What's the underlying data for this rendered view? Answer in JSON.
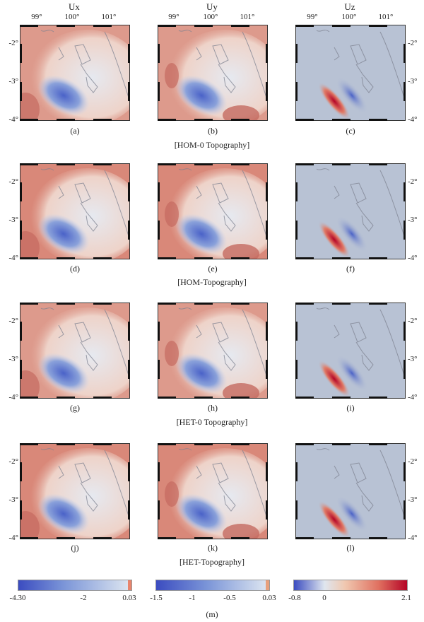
{
  "columns": [
    "Ux",
    "Uy",
    "Uz"
  ],
  "x_ticks": [
    "99°",
    "100°",
    "101°"
  ],
  "y_ticks": [
    "-2°",
    "-3°",
    "-4°"
  ],
  "rows": [
    {
      "caption": "[HOM-0 Topography]",
      "labels": [
        "(a)",
        "(b)",
        "(c)"
      ]
    },
    {
      "caption": "[HOM-Topography]",
      "labels": [
        "(d)",
        "(e)",
        "(f)"
      ]
    },
    {
      "caption": "[HET-0 Topography]",
      "labels": [
        "(g)",
        "(h)",
        "(i)"
      ]
    },
    {
      "caption": "[HET-Topography]",
      "labels": [
        "(j)",
        "(k)",
        "(l)"
      ]
    }
  ],
  "colorbars": [
    {
      "labels": [
        "-4.30",
        "-2",
        "0.03"
      ]
    },
    {
      "labels": [
        "-1.5",
        "-1",
        "-0.5",
        "0.03"
      ]
    },
    {
      "labels": [
        "-0.8",
        "0",
        "2.1"
      ]
    }
  ],
  "unit": "(m)",
  "colors": {
    "neg": "#3b4cc0",
    "mid": "#dbe4f0",
    "pos": "#b40426",
    "bg_red": "#d88a7e",
    "bg_blue": "#aab8cf"
  }
}
